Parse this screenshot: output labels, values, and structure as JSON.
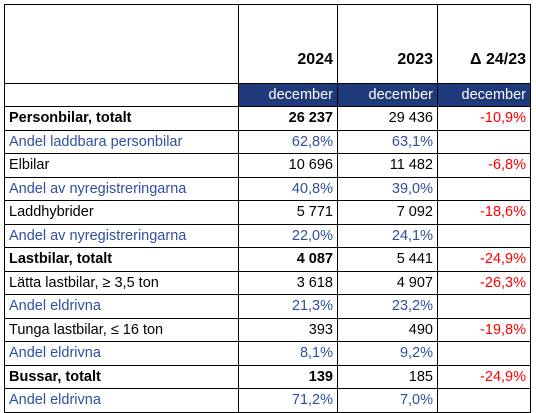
{
  "header": {
    "columns": [
      "2024",
      "2023",
      "Δ 24/23"
    ],
    "subheader": [
      "december",
      "december",
      "december"
    ],
    "subheader_background": "#1f3a7a"
  },
  "delta_color": "#ff0000",
  "rows": [
    {
      "cells": [
        "Personbilar, totalt",
        "26 237",
        "29 436",
        "-10,9%"
      ],
      "bold": true,
      "color": "#000000"
    },
    {
      "cells": [
        "Andel laddbara personbilar",
        "62,8%",
        "63,1%",
        null
      ],
      "bold": false,
      "color": "#2f4f9f"
    },
    {
      "cells": [
        "Elbilar",
        "10 696",
        "11 482",
        "-6,8%"
      ],
      "bold": false,
      "color": "#000000"
    },
    {
      "cells": [
        "Andel av nyregistreringarna",
        "40,8%",
        "39,0%",
        null
      ],
      "bold": false,
      "color": "#2f4f9f"
    },
    {
      "cells": [
        "Laddhybrider",
        "5 771",
        "7 092",
        "-18,6%"
      ],
      "bold": false,
      "color": "#000000"
    },
    {
      "cells": [
        "Andel av nyregistreringarna",
        "22,0%",
        "24,1%",
        null
      ],
      "bold": false,
      "color": "#2f4f9f"
    },
    {
      "cells": [
        "Lastbilar, totalt",
        "4 087",
        "5 441",
        "-24,9%"
      ],
      "bold": true,
      "color": "#000000"
    },
    {
      "cells": [
        "Lätta lastbilar, ≥ 3,5 ton",
        "3 618",
        "4 907",
        "-26,3%"
      ],
      "bold": false,
      "color": "#000000"
    },
    {
      "cells": [
        "Andel eldrivna",
        "21,3%",
        "23,2%",
        null
      ],
      "bold": false,
      "color": "#2f4f9f"
    },
    {
      "cells": [
        "Tunga lastbilar, ≤ 16 ton",
        "393",
        "490",
        "-19,8%"
      ],
      "bold": false,
      "color": "#000000"
    },
    {
      "cells": [
        "Andel eldrivna",
        "8,1%",
        "9,2%",
        null
      ],
      "bold": false,
      "color": "#2f4f9f"
    },
    {
      "cells": [
        "Bussar, totalt",
        "139",
        "185",
        "-24,9%"
      ],
      "bold": true,
      "color": "#000000"
    },
    {
      "cells": [
        "Andel eldrivna",
        "71,2%",
        "7,0%",
        null
      ],
      "bold": false,
      "color": "#2f4f9f"
    }
  ]
}
